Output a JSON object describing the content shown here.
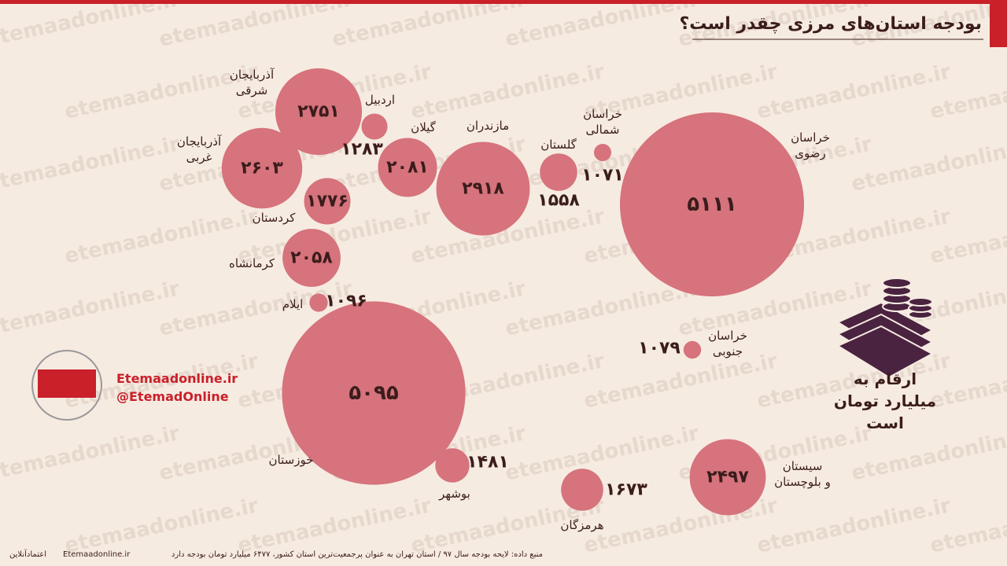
{
  "chart_data": {
    "type": "bubble",
    "title": "بودجه استان‌های مرزی چقدر است؟",
    "categories": [
      "آذربایجان\nشرقی",
      "اردبیل",
      "آذربایجان\nغربی",
      "گیلان",
      "کردستان",
      "مازندران",
      "گلستان",
      "خراسان\nشمالی",
      "خراسان\nرضوی",
      "کرمانشاه",
      "ایلام",
      "خوزستان",
      "بوشهر",
      "هرمزگان",
      "خراسان\nجنوبی",
      "سیستان\nو بلوچستان"
    ],
    "values": [
      2751,
      1283,
      2603,
      2081,
      1776,
      2918,
      1558,
      1071,
      5111,
      2058,
      1096,
      5095,
      1481,
      1673,
      1079,
      2497
    ],
    "value_labels": [
      "۲۷۵۱",
      "۱۲۸۳",
      "۲۶۰۳",
      "۲۰۸۱",
      "۱۷۷۶",
      "۲۹۱۸",
      "۱۵۵۸",
      "۱۰۷۱",
      "۵۱۱۱",
      "۲۰۵۸",
      "۱۰۹۶",
      "۵۰۹۵",
      "۱۴۸۱",
      "۱۶۷۳",
      "۱۰۷۹",
      "۲۴۹۷"
    ],
    "color": "#d6737c",
    "note": "ارقام به\nمیلیارد تومان است",
    "watermark": "etemaadonline.ir",
    "brand": [
      "Etemaadonline.ir",
      "@EtemadOnline"
    ],
    "footer": [
      "منبع داده: لایحه بودجه سال ۹۷ / استان تهران به عنوان پرجمعیت‌ترین استان کشور، ۶۴۷۷ میلیارد تومان بودجه دارد",
      "Etemaadonline.ir",
      "اعتمادآنلاین"
    ]
  }
}
